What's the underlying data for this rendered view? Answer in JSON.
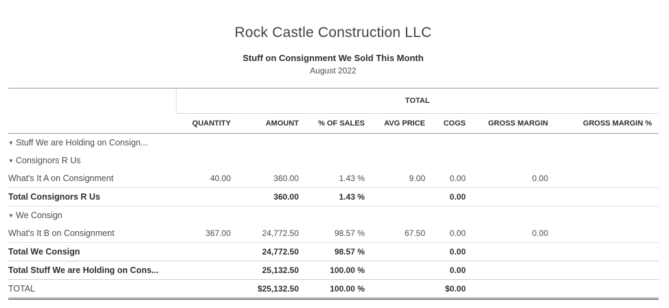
{
  "company_name": "Rock Castle Construction LLC",
  "report_title": "Stuff on Consignment We Sold This Month",
  "report_period": "August 2022",
  "group_header": "TOTAL",
  "columns": [
    "QUANTITY",
    "AMOUNT",
    "% OF SALES",
    "AVG PRICE",
    "COGS",
    "GROSS MARGIN",
    "GROSS MARGIN %"
  ],
  "rows": {
    "r1": {
      "label": "Stuff We are Holding on Consign..."
    },
    "r2": {
      "label": "Consignors R Us"
    },
    "r3": {
      "label": "What's It A on Consignment",
      "quantity": "40.00",
      "amount": "360.00",
      "pct_sales": "1.43 %",
      "avg_price": "9.00",
      "cogs": "0.00",
      "gross_margin": "0.00",
      "gross_margin_pct": ""
    },
    "r4": {
      "label": "Total Consignors R Us",
      "amount": "360.00",
      "pct_sales": "1.43 %",
      "cogs": "0.00"
    },
    "r5": {
      "label": "We Consign"
    },
    "r6": {
      "label": "What's It B on Consignment",
      "quantity": "367.00",
      "amount": "24,772.50",
      "pct_sales": "98.57 %",
      "avg_price": "67.50",
      "cogs": "0.00",
      "gross_margin": "0.00",
      "gross_margin_pct": ""
    },
    "r7": {
      "label": "Total We Consign",
      "amount": "24,772.50",
      "pct_sales": "98.57 %",
      "cogs": "0.00"
    },
    "r8": {
      "label": "Total Stuff We are Holding on Cons...",
      "amount": "25,132.50",
      "pct_sales": "100.00 %",
      "cogs": "0.00"
    },
    "r9": {
      "label": "TOTAL",
      "amount": "$25,132.50",
      "pct_sales": "100.00 %",
      "cogs": "$0.00"
    }
  },
  "icons": {
    "expanded": "caret-down-icon"
  }
}
